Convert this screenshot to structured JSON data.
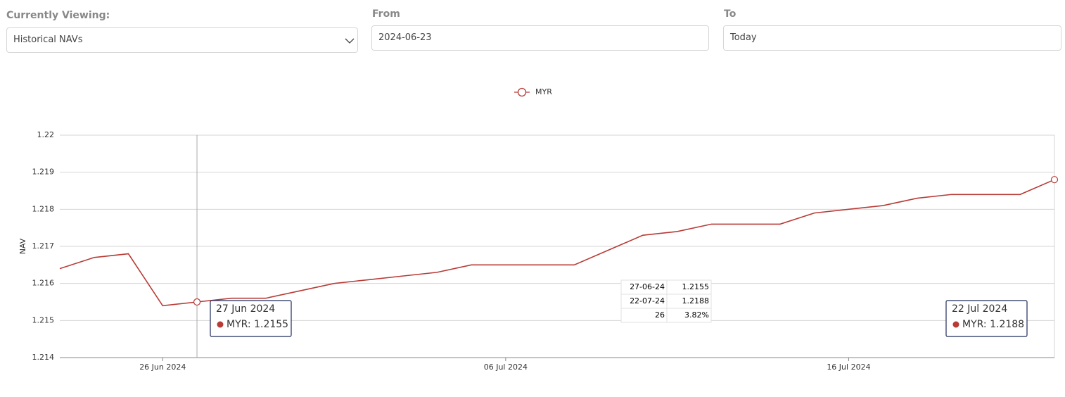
{
  "form": {
    "view_label": "Currently Viewing:",
    "view_value": "Historical NAVs",
    "from_label": "From",
    "from_value": "2024-06-23",
    "to_label": "To",
    "to_value": "Today"
  },
  "chart_data": {
    "type": "line",
    "y_label": "NAV",
    "x": [
      "2024-06-23",
      "2024-06-24",
      "2024-06-25",
      "2024-06-26",
      "2024-06-27",
      "2024-06-28",
      "2024-06-29",
      "2024-06-30",
      "2024-07-01",
      "2024-07-02",
      "2024-07-03",
      "2024-07-04",
      "2024-07-05",
      "2024-07-06",
      "2024-07-07",
      "2024-07-08",
      "2024-07-09",
      "2024-07-10",
      "2024-07-11",
      "2024-07-12",
      "2024-07-13",
      "2024-07-14",
      "2024-07-15",
      "2024-07-16",
      "2024-07-17",
      "2024-07-18",
      "2024-07-19",
      "2024-07-20",
      "2024-07-21",
      "2024-07-22"
    ],
    "series": [
      {
        "name": "MYR",
        "color": "#b83b36",
        "values": [
          1.2164,
          1.2167,
          1.2168,
          1.2154,
          1.2155,
          1.2156,
          1.2156,
          1.2158,
          1.216,
          1.2161,
          1.2162,
          1.2163,
          1.2165,
          1.2165,
          1.2165,
          1.2165,
          1.2169,
          1.2173,
          1.2174,
          1.2176,
          1.2176,
          1.2176,
          1.2179,
          1.218,
          1.2181,
          1.2183,
          1.2184,
          1.2184,
          1.2184,
          1.2188
        ]
      }
    ],
    "xlim": [
      "2024-06-23",
      "2024-07-22"
    ],
    "xticks": [
      {
        "value": "2024-06-26",
        "label": "26 Jun 2024"
      },
      {
        "value": "2024-07-06",
        "label": "06 Jul 2024"
      },
      {
        "value": "2024-07-16",
        "label": "16 Jul 2024"
      }
    ],
    "ylim": [
      1.214,
      1.22
    ],
    "yticks": [
      1.214,
      1.215,
      1.216,
      1.217,
      1.218,
      1.219,
      1.22
    ],
    "grid": true,
    "tooltips": [
      {
        "title": "27 Jun 2024",
        "label": "MYR: 1.2155"
      },
      {
        "title": "22 Jul 2024",
        "label": "MYR: 1.2188"
      }
    ],
    "summary_table": [
      [
        "27-06-24",
        "1.2155"
      ],
      [
        "22-07-24",
        "1.2188"
      ],
      [
        "26",
        "3.82%"
      ]
    ]
  }
}
